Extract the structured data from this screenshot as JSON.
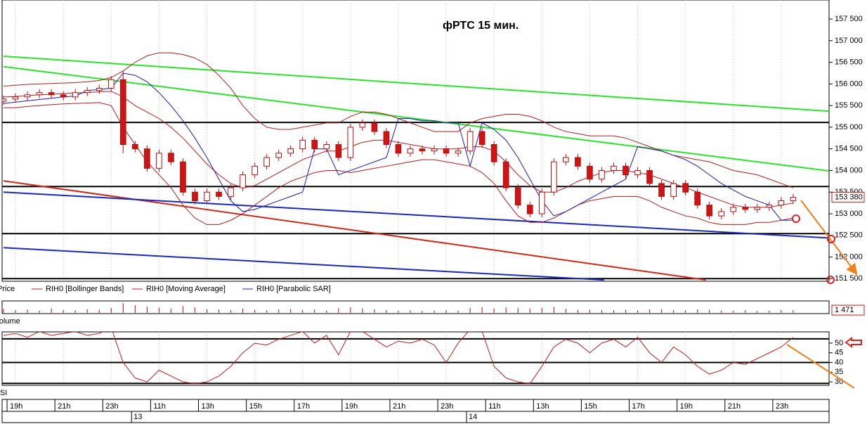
{
  "chart_data": [
    {
      "type": "candlestick",
      "title": "фРТС    15 мин.",
      "price_name": "Price",
      "x": [
        0,
        1,
        2,
        3,
        4,
        5,
        6,
        7,
        8,
        9,
        10,
        11,
        12,
        13,
        14,
        15,
        16,
        17,
        18,
        19,
        20,
        21,
        22,
        23,
        24,
        25,
        26,
        27,
        28,
        29,
        30,
        31,
        32,
        33,
        34,
        35,
        36,
        37,
        38,
        39,
        40,
        41,
        42,
        43,
        44,
        45,
        46,
        47,
        48,
        49,
        50,
        51,
        52,
        53,
        54,
        55,
        56,
        57,
        58,
        59,
        60,
        61,
        62,
        63,
        64,
        65,
        66
      ],
      "open": [
        155600,
        155650,
        155700,
        155750,
        155800,
        155750,
        155700,
        155800,
        155850,
        155900,
        156100,
        154600,
        154500,
        154050,
        154400,
        154200,
        153500,
        153300,
        153500,
        153400,
        153600,
        153900,
        154100,
        154300,
        154400,
        154500,
        154700,
        154500,
        154600,
        154300,
        155000,
        155100,
        154900,
        154600,
        154400,
        154500,
        154450,
        154500,
        154400,
        154450,
        154900,
        154600,
        154200,
        153600,
        153200,
        153000,
        153500,
        154200,
        154300,
        154100,
        153800,
        154000,
        154100,
        153900,
        154000,
        153700,
        153400,
        153700,
        153500,
        153200,
        152950,
        153050,
        153150,
        153100,
        153150,
        153200,
        153300
      ],
      "high": [
        155730,
        155780,
        155830,
        155880,
        155880,
        155830,
        155880,
        155930,
        155980,
        156180,
        156300,
        154680,
        154580,
        154480,
        154480,
        154280,
        153580,
        153580,
        153580,
        153680,
        153980,
        154180,
        154380,
        154480,
        154580,
        154780,
        154780,
        154680,
        154680,
        155080,
        155180,
        155180,
        154980,
        154680,
        154580,
        154580,
        154580,
        154580,
        154530,
        154980,
        154980,
        154680,
        154280,
        153680,
        153280,
        153580,
        154280,
        154380,
        154380,
        154180,
        154080,
        154180,
        154180,
        154080,
        154080,
        153780,
        153780,
        153780,
        153580,
        153280,
        153130,
        153230,
        153230,
        153230,
        153280,
        153380,
        153460
      ],
      "low": [
        155520,
        155570,
        155620,
        155670,
        155670,
        155620,
        155620,
        155720,
        155770,
        155820,
        154400,
        154420,
        153970,
        153970,
        154120,
        153420,
        153220,
        153220,
        153320,
        153320,
        153520,
        153820,
        154020,
        154220,
        154320,
        154420,
        154420,
        154420,
        154220,
        154220,
        154920,
        154820,
        154520,
        154320,
        154320,
        154370,
        154370,
        154320,
        154320,
        154370,
        154520,
        154120,
        153520,
        153120,
        152920,
        152920,
        153420,
        154120,
        154020,
        153720,
        153720,
        153920,
        153820,
        153820,
        153620,
        153320,
        153320,
        153420,
        153120,
        152870,
        152870,
        152970,
        153020,
        153020,
        153070,
        153120,
        153220
      ],
      "close": [
        155650,
        155700,
        155750,
        155800,
        155750,
        155700,
        155800,
        155850,
        155900,
        156100,
        154600,
        154500,
        154050,
        154400,
        154200,
        153500,
        153300,
        153500,
        153400,
        153600,
        153900,
        154100,
        154300,
        154400,
        154500,
        154700,
        154500,
        154600,
        154300,
        155000,
        155100,
        154900,
        154600,
        154400,
        154500,
        154450,
        154500,
        154400,
        154450,
        154900,
        154600,
        154200,
        153600,
        153200,
        153000,
        153500,
        154200,
        154300,
        154100,
        153800,
        154000,
        154100,
        153900,
        154000,
        153700,
        153400,
        153700,
        153500,
        153200,
        152950,
        153050,
        153150,
        153100,
        153150,
        153200,
        153300,
        153380
      ],
      "up_color": "#ffffff",
      "down_color": "#d01414",
      "candle_edge": "#b01010",
      "series": [
        {
          "name": "RIH0 [Bollinger Bands]",
          "color": "#a82020",
          "upper": [
            155950,
            155970,
            155990,
            156000,
            156010,
            156020,
            156030,
            156050,
            156080,
            156150,
            156300,
            156500,
            156650,
            156720,
            156720,
            156680,
            156600,
            156450,
            156200,
            155900,
            155500,
            155200,
            155000,
            154950,
            154950,
            155000,
            155050,
            155100,
            155100,
            155250,
            155350,
            155350,
            155300,
            155200,
            155100,
            155000,
            154900,
            154900,
            154900,
            155100,
            155200,
            155250,
            155300,
            155300,
            155250,
            155150,
            155000,
            154900,
            154850,
            154800,
            154800,
            154800,
            154750,
            154650,
            154550,
            154450,
            154350,
            154300,
            154250,
            154200,
            154100,
            154000,
            153950,
            153900,
            153800,
            153700,
            153600
          ],
          "lower": [
            155450,
            155450,
            155480,
            155500,
            155520,
            155540,
            155550,
            155560,
            155570,
            155500,
            155000,
            154600,
            154200,
            153900,
            153600,
            153200,
            152900,
            152750,
            152750,
            152850,
            153000,
            153200,
            153400,
            153600,
            153750,
            153850,
            153950,
            154000,
            154000,
            153950,
            154000,
            154050,
            154100,
            154150,
            154200,
            154250,
            154250,
            154200,
            154150,
            154100,
            153950,
            153700,
            153300,
            152950,
            152800,
            152800,
            152900,
            153050,
            153200,
            153300,
            153350,
            153400,
            153400,
            153400,
            153300,
            153150,
            153050,
            152950,
            152900,
            152800,
            152750,
            152750,
            152750,
            152800,
            152800,
            152850,
            152900
          ]
        },
        {
          "name": "RIH0 [Moving Average]",
          "color": "#b02020",
          "values": [
            155700,
            155710,
            155730,
            155750,
            155760,
            155780,
            155790,
            155800,
            155820,
            155830,
            155700,
            155500,
            155350,
            155200,
            155000,
            154750,
            154450,
            154150,
            153900,
            153700,
            153600,
            153650,
            153800,
            153950,
            154100,
            154250,
            154350,
            154450,
            154450,
            154550,
            154650,
            154700,
            154700,
            154650,
            154600,
            154550,
            154500,
            154500,
            154500,
            154550,
            154550,
            154450,
            154200,
            153900,
            153650,
            153500,
            153500,
            153600,
            153750,
            153850,
            153950,
            154000,
            154000,
            153950,
            153900,
            153800,
            153700,
            153600,
            153500,
            153400,
            153300,
            153200,
            153150,
            153150,
            153150,
            153200,
            153250
          ]
        },
        {
          "name": "RIH0 [Parabolic SAR]",
          "color": "#1c1ca8",
          "values": [
            155550,
            155580,
            155610,
            155640,
            155670,
            155700,
            155720,
            155850,
            155870,
            155900,
            156250,
            156200,
            156050,
            155800,
            155500,
            155150,
            154750,
            154300,
            153800,
            153300,
            153050,
            153100,
            153200,
            153300,
            153400,
            153500,
            154500,
            154500,
            153900,
            154000,
            154100,
            154200,
            154300,
            155200,
            155200,
            155150,
            155150,
            155100,
            155100,
            154100,
            155100,
            154950,
            154700,
            154300,
            153800,
            153300,
            152950,
            153050,
            153200,
            153350,
            153500,
            153650,
            153800,
            154550,
            154500,
            154450,
            154350,
            154250,
            154100,
            153900,
            153700,
            153550,
            153400,
            153300,
            153200,
            152850,
            152850
          ]
        }
      ],
      "hlines": [
        155110,
        153630,
        152540,
        151500
      ],
      "hline_color": "#000000",
      "trendlines": [
        {
          "x": [
            0,
            69
          ],
          "y": [
            156640,
            155370
          ],
          "color": "#2ee02e"
        },
        {
          "x": [
            0,
            69
          ],
          "y": [
            156400,
            153990
          ],
          "color": "#2ee02e"
        },
        {
          "x": [
            0,
            58.7
          ],
          "y": [
            153760,
            151470
          ],
          "color": "#cc2a1a"
        },
        {
          "x": [
            0,
            69
          ],
          "y": [
            153500,
            152440
          ],
          "color": "#1a2ab8"
        },
        {
          "x": [
            0,
            50.2
          ],
          "y": [
            152215,
            151470
          ],
          "color": "#1a2ab8"
        }
      ],
      "xlim": [
        0,
        69
      ],
      "ylim": [
        151440,
        157940
      ],
      "yticks": [
        {
          "value": 151500,
          "label": "151 500"
        },
        {
          "value": 152000,
          "label": "152 000"
        },
        {
          "value": 152500,
          "label": "152 500"
        },
        {
          "value": 153000,
          "label": "153 000"
        },
        {
          "value": 153500,
          "label": "153 500"
        },
        {
          "value": 154000,
          "label": "154 000"
        },
        {
          "value": 154500,
          "label": "154 500"
        },
        {
          "value": 155000,
          "label": "155 000"
        },
        {
          "value": 155500,
          "label": "155 500"
        },
        {
          "value": 156000,
          "label": "156 000"
        },
        {
          "value": 156500,
          "label": "156 500"
        },
        {
          "value": 157000,
          "label": "157 000"
        },
        {
          "value": 157500,
          "label": "157 500"
        }
      ],
      "last_label": {
        "value": 153380,
        "label": "153 380"
      },
      "xticks": [
        {
          "value": 1,
          "label": "19h"
        },
        {
          "value": 5,
          "label": "21h"
        },
        {
          "value": 9,
          "label": "23h"
        },
        {
          "value": 13,
          "label": "11h"
        },
        {
          "value": 17,
          "label": "13h"
        },
        {
          "value": 21,
          "label": "15h"
        },
        {
          "value": 25,
          "label": "17h"
        },
        {
          "value": 29,
          "label": "19h"
        },
        {
          "value": 33,
          "label": "21h"
        },
        {
          "value": 37,
          "label": "23h"
        },
        {
          "value": 41,
          "label": "11h"
        },
        {
          "value": 45,
          "label": "13h"
        },
        {
          "value": 49,
          "label": "15h"
        },
        {
          "value": 53,
          "label": "17h"
        },
        {
          "value": 57,
          "label": "19h"
        },
        {
          "value": 61,
          "label": "21h"
        },
        {
          "value": 65,
          "label": "23h"
        }
      ],
      "day_ticks": [
        {
          "value": 10.7,
          "label": "13"
        },
        {
          "value": 38.7,
          "label": "14"
        }
      ],
      "grid": true
    },
    {
      "type": "bar",
      "name": "Volume",
      "color": "#b01010",
      "values": [
        2100,
        1500,
        1800,
        1200,
        2400,
        1600,
        1300,
        2000,
        1700,
        2600,
        5200,
        4100,
        3300,
        2800,
        2200,
        3600,
        2900,
        2000,
        1800,
        1500,
        2300,
        1700,
        1400,
        1900,
        2100,
        1600,
        1800,
        1300,
        2500,
        3000,
        2400,
        1800,
        1500,
        1200,
        1400,
        1100,
        1300,
        1500,
        1200,
        2600,
        3100,
        2400,
        2900,
        2600,
        2200,
        2700,
        3200,
        2100,
        1600,
        1700,
        1500,
        1400,
        1600,
        1300,
        1800,
        2000,
        1500,
        1400,
        1900,
        1700,
        1300,
        1200,
        1400,
        1100,
        1300,
        1600,
        1471
      ],
      "ylim": [
        0,
        6000
      ],
      "last_label": {
        "value": 1471,
        "label": "1 471"
      }
    },
    {
      "type": "line",
      "name": "RSI",
      "color": "#b02020",
      "values": [
        54,
        55,
        53,
        56,
        54,
        55,
        56,
        54,
        55,
        58,
        40,
        32,
        30,
        36,
        33,
        30,
        29,
        30,
        33,
        38,
        45,
        50,
        49,
        52,
        54,
        56,
        50,
        54,
        44,
        56,
        56,
        52,
        48,
        51,
        50,
        52,
        49,
        40,
        50,
        57,
        56,
        38,
        32,
        30,
        29,
        38,
        48,
        52,
        50,
        45,
        50,
        52,
        48,
        53,
        45,
        40,
        48,
        44,
        38,
        34,
        36,
        40,
        39,
        42,
        45,
        48,
        53
      ],
      "ylim": [
        28.2,
        55.8
      ],
      "yticks": [
        30,
        35,
        40,
        45,
        50
      ],
      "hlines": [
        52.2,
        40,
        29.2
      ]
    }
  ]
}
